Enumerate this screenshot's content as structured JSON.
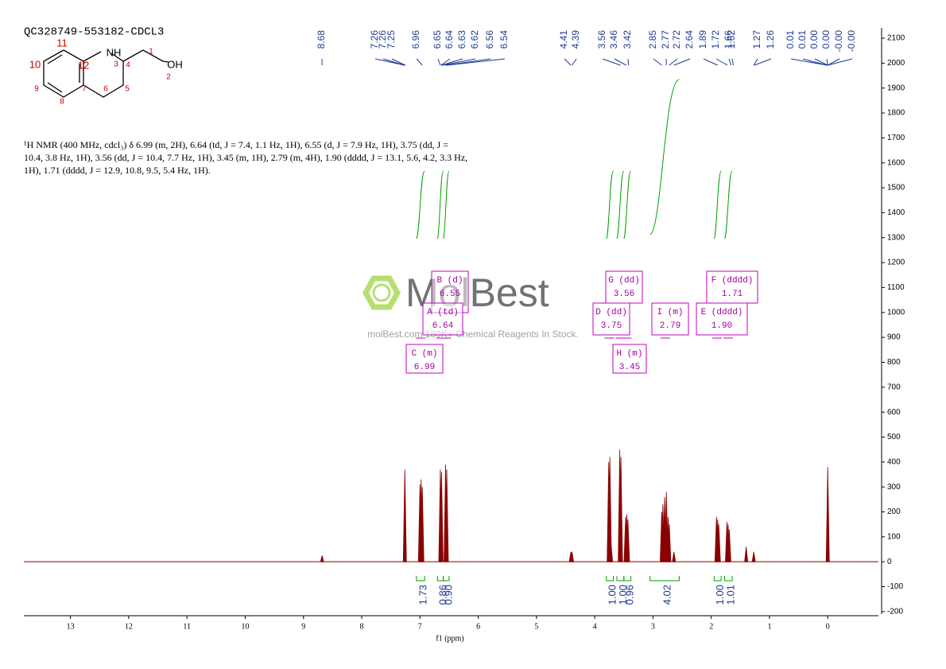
{
  "chart_data": {
    "type": "spectrum",
    "title": "QC328749-553182-CDCL3",
    "description": "¹H NMR (400 MHz, cdcl₃) δ 6.99 (m, 2H), 6.64 (td, J = 7.4, 1.1 Hz, 1H), 6.55 (d, J = 7.9 Hz, 1H), 3.75 (dd, J = 10.4, 3.8 Hz, 1H), 3.56 (dd, J = 10.4, 7.7 Hz, 1H), 3.45 (m, 1H), 2.79 (m, 4H), 1.90 (dddd, J = 13.1, 5.6, 4.2, 3.3 Hz, 1H), 1.71 (dddd, J = 12.9, 10.8, 9.5, 5.4 Hz, 1H).",
    "structure_labels": [
      "11",
      "NH",
      "3",
      "1",
      "10",
      "12",
      "4",
      "OH",
      "2",
      "9",
      "7",
      "5",
      "8",
      "6"
    ],
    "watermark": "MolBest",
    "watermark_note": "molBest.com 180K+ Chemical Reagents In Stock.",
    "x_label": "f1 (ppm)",
    "xlim": [
      13.8,
      -0.87
    ],
    "xticks": [
      13,
      12,
      11,
      10,
      9,
      8,
      7,
      6,
      5,
      4,
      3,
      2,
      1,
      0
    ],
    "ylim": [
      -210,
      2130
    ],
    "yticks": [
      -200,
      -100,
      0,
      100,
      200,
      300,
      400,
      500,
      600,
      700,
      800,
      900,
      1000,
      1100,
      1200,
      1300,
      1400,
      1500,
      1600,
      1700,
      1800,
      1900,
      2000,
      2100
    ],
    "color": "#8b0000",
    "peaks": {
      "x": [
        8.68,
        7.26,
        7.0,
        6.98,
        6.96,
        6.65,
        6.63,
        6.56,
        6.54,
        4.41,
        4.39,
        3.76,
        3.74,
        3.72,
        3.57,
        3.55,
        3.47,
        3.45,
        3.43,
        2.85,
        2.83,
        2.8,
        2.77,
        2.74,
        2.72,
        2.64,
        1.91,
        1.89,
        1.87,
        1.73,
        1.71,
        1.69,
        1.4,
        1.27,
        0.0
      ],
      "values": [
        25,
        370,
        310,
        330,
        300,
        370,
        360,
        390,
        370,
        40,
        40,
        400,
        420,
        70,
        450,
        420,
        180,
        190,
        170,
        200,
        230,
        260,
        280,
        180,
        150,
        40,
        180,
        170,
        150,
        160,
        150,
        130,
        60,
        40,
        380
      ]
    },
    "peak_labels": [
      "8.68",
      "7.26",
      "7.26",
      "7.25",
      "6.96",
      "6.65",
      "6.64",
      "6.63",
      "6.62",
      "6.56",
      "6.54",
      "4.41",
      "4.39",
      "3.56",
      "3.46",
      "3.42",
      "2.85",
      "2.77",
      "2.72",
      "2.64",
      "1.89",
      "1.72",
      "1.66",
      "1.62",
      "1.27",
      "1.26",
      "0.01",
      "0.01",
      "0.00",
      "0.00",
      "-0.00",
      "-0.00"
    ],
    "peak_label_ppm": [
      8.68,
      7.26,
      7.26,
      7.25,
      6.96,
      6.65,
      6.64,
      6.63,
      6.62,
      6.56,
      6.54,
      4.41,
      4.39,
      3.56,
      3.46,
      3.42,
      2.85,
      2.77,
      2.72,
      2.64,
      1.89,
      1.72,
      1.66,
      1.62,
      1.27,
      1.26,
      0.01,
      0.01,
      0.0,
      0.0,
      0.0,
      0.0
    ],
    "integrals": {
      "from": [
        7.06,
        6.7,
        6.6,
        3.8,
        3.62,
        3.5,
        3.05,
        1.95,
        1.77
      ],
      "to": [
        6.92,
        6.6,
        6.5,
        3.68,
        3.5,
        3.38,
        2.55,
        1.83,
        1.64
      ],
      "labels": [
        "1.73",
        "0.86",
        "0.90",
        "1.00",
        "1.00",
        "0.96",
        "4.02",
        "1.00",
        "1.01"
      ]
    },
    "multiplets": {
      "names": [
        "B (d)",
        "A (td)",
        "C (m)",
        "G (dd)",
        "D (dd)",
        "H (m)",
        "I (m)",
        "F (dddd)",
        "E (dddd)"
      ],
      "shifts": [
        "6.55",
        "6.64",
        "6.99",
        "3.56",
        "3.75",
        "3.45",
        "2.79",
        "1.71",
        "1.90"
      ]
    }
  }
}
